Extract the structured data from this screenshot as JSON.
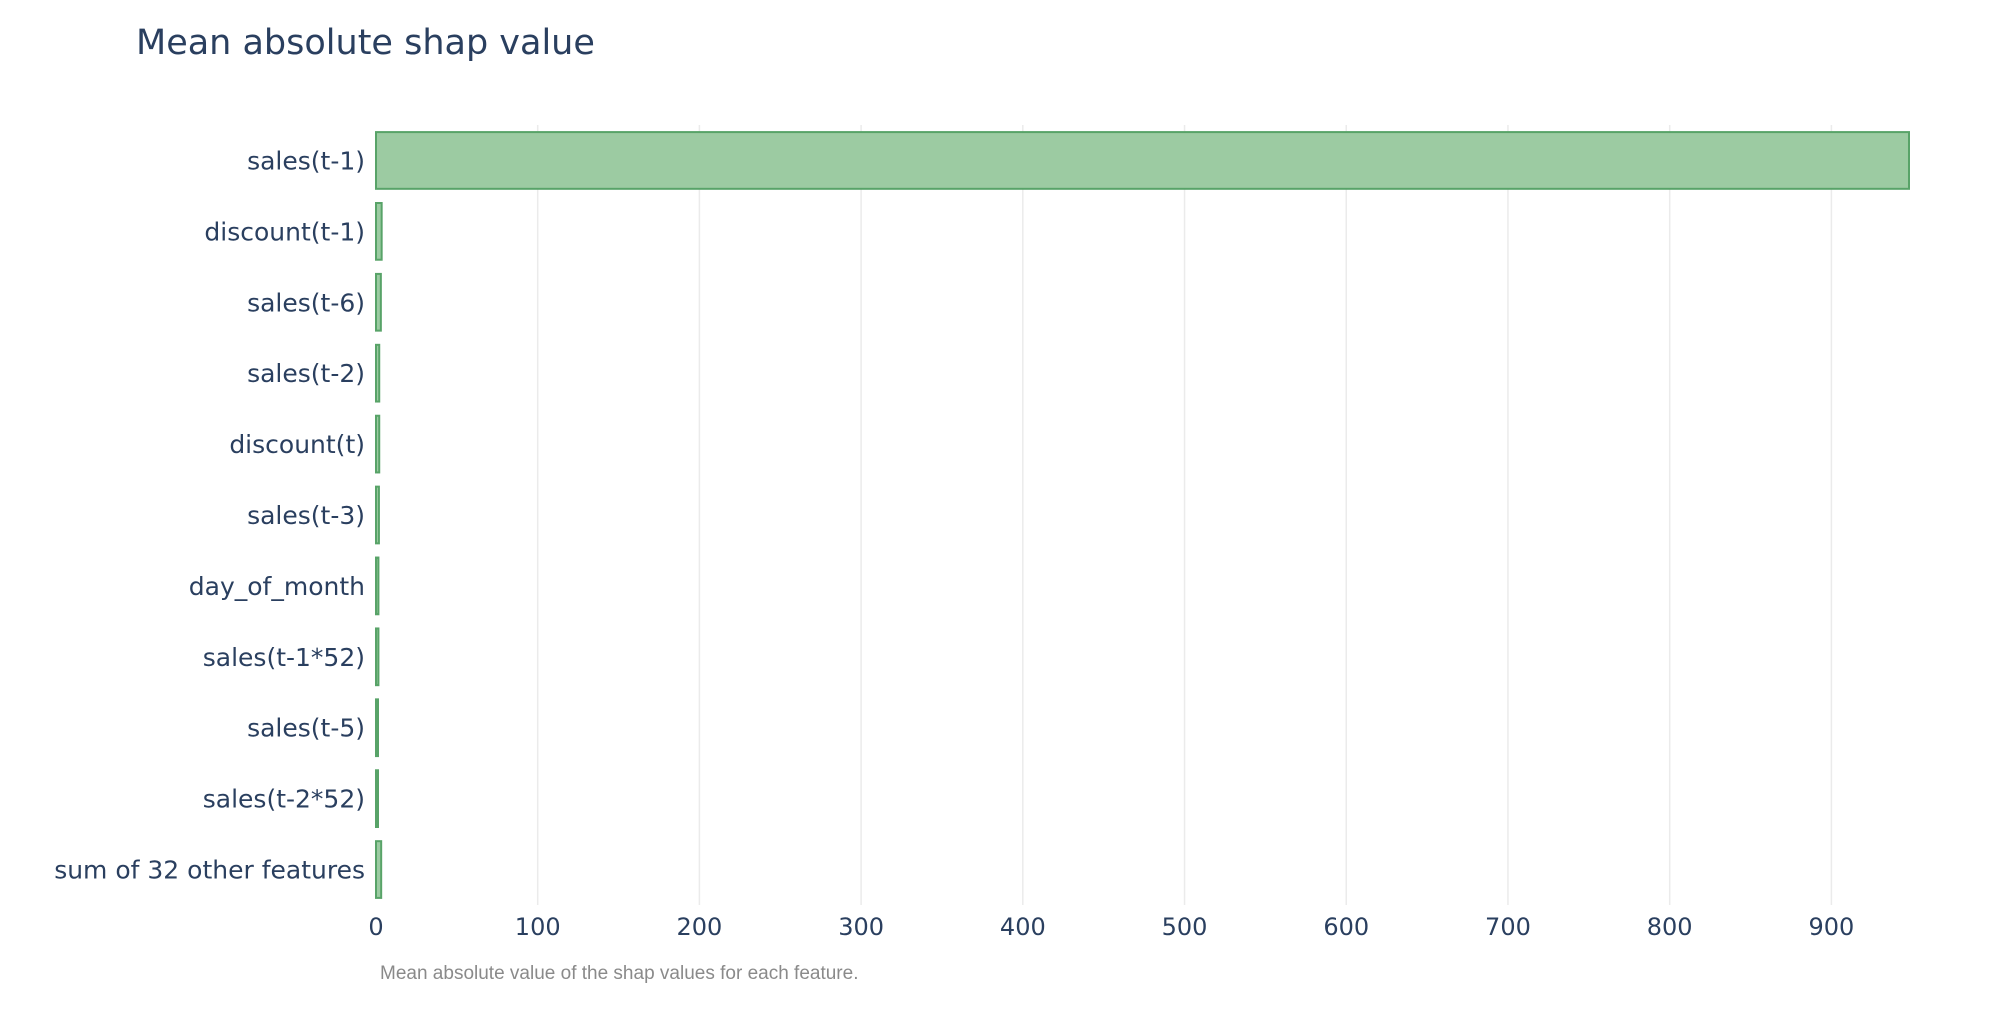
{
  "chart_data": {
    "type": "bar",
    "orientation": "horizontal",
    "title": "Mean absolute shap value",
    "caption": "Mean absolute value of the shap values for each feature.",
    "categories": [
      "sales(t-1)",
      "discount(t-1)",
      "sales(t-6)",
      "sales(t-2)",
      "discount(t)",
      "sales(t-3)",
      "day_of_month",
      "sales(t-1*52)",
      "sales(t-5)",
      "sales(t-2*52)",
      "sum of 32 other features"
    ],
    "values": [
      948,
      3.5,
      3,
      2,
      2,
      1.8,
      1.5,
      1.5,
      1.2,
      1.2,
      3.2
    ],
    "xticks": [
      0,
      100,
      200,
      300,
      400,
      500,
      600,
      700,
      800,
      900
    ],
    "xlim": [
      0,
      948
    ],
    "grid": true,
    "colors": {
      "bar_fill": "#9ccba2",
      "bar_edge": "#58a368",
      "text": "#2a3f5f",
      "grid": "#ebebeb",
      "caption": "#8a8a8a"
    }
  }
}
